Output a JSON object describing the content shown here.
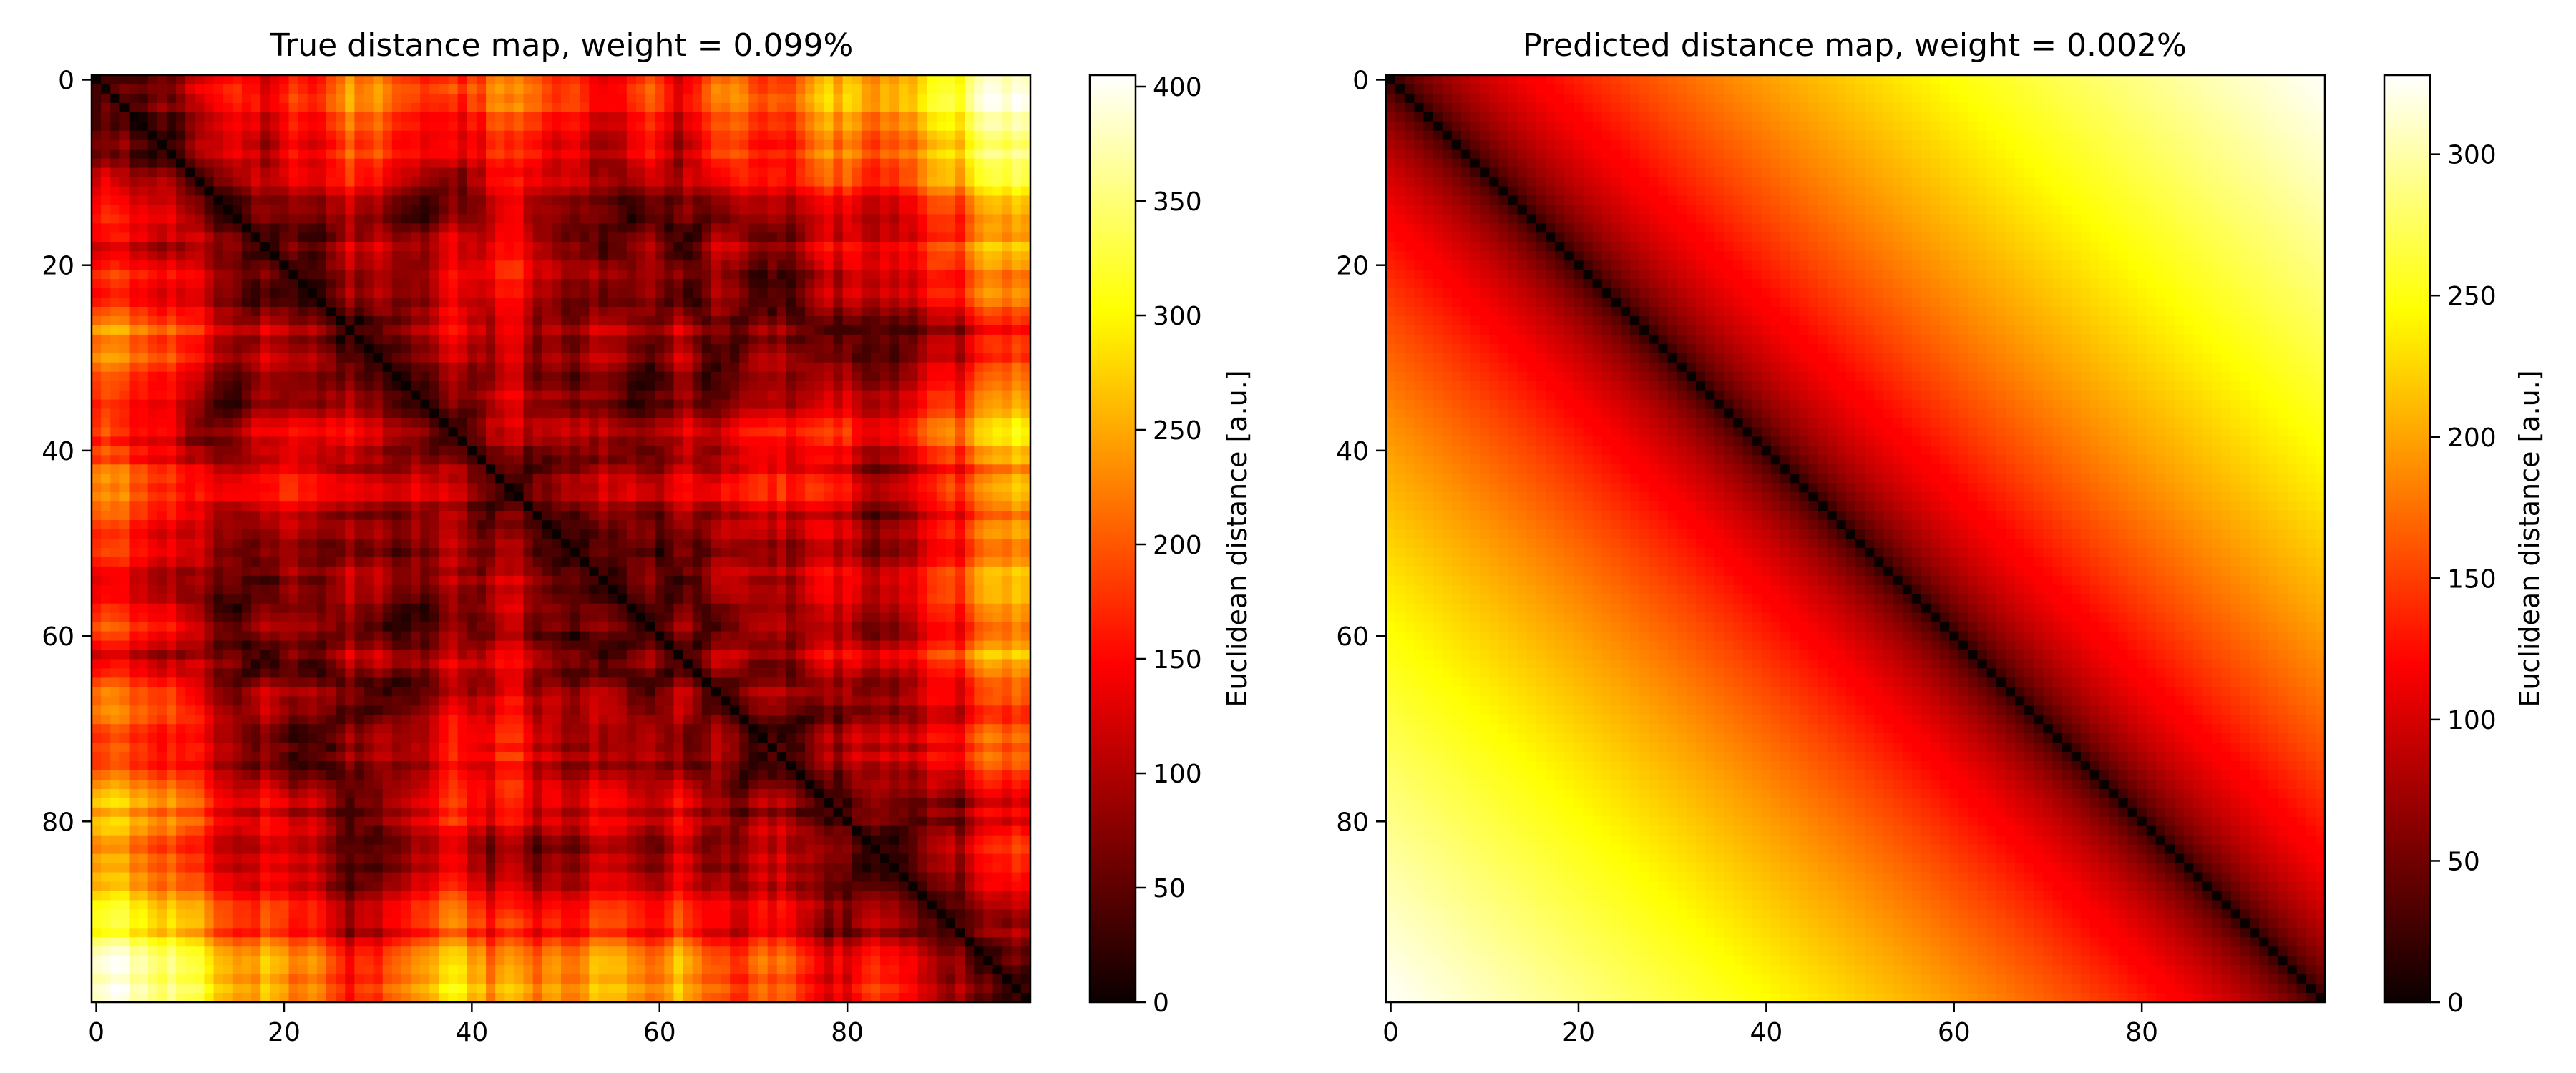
{
  "chart_data": [
    {
      "type": "heatmap",
      "title": "True distance map, weight = 0.099%",
      "xlabel": "",
      "ylabel": "",
      "grid_size": 100,
      "xlim": [
        0,
        99
      ],
      "ylim": [
        99,
        0
      ],
      "x_ticks": [
        0,
        20,
        40,
        60,
        80
      ],
      "y_ticks": [
        0,
        20,
        40,
        60,
        80
      ],
      "colormap": "hot",
      "colorbar": {
        "label": "Euclidean distance [a.u.]",
        "range": [
          0,
          405
        ],
        "ticks": [
          0,
          50,
          100,
          150,
          200,
          250,
          300,
          350,
          400
        ]
      },
      "value_range": [
        0,
        405
      ]
    },
    {
      "type": "heatmap",
      "title": "Predicted distance map, weight = 0.002%",
      "xlabel": "",
      "ylabel": "",
      "grid_size": 100,
      "xlim": [
        0,
        99
      ],
      "ylim": [
        99,
        0
      ],
      "x_ticks": [
        0,
        20,
        40,
        60,
        80
      ],
      "y_ticks": [
        0,
        20,
        40,
        60,
        80
      ],
      "colormap": "hot",
      "colorbar": {
        "label": "Euclidean distance [a.u.]",
        "range": [
          0,
          328
        ],
        "ticks": [
          0,
          50,
          100,
          150,
          200,
          250,
          300
        ]
      },
      "value_range": [
        0,
        328
      ]
    }
  ]
}
